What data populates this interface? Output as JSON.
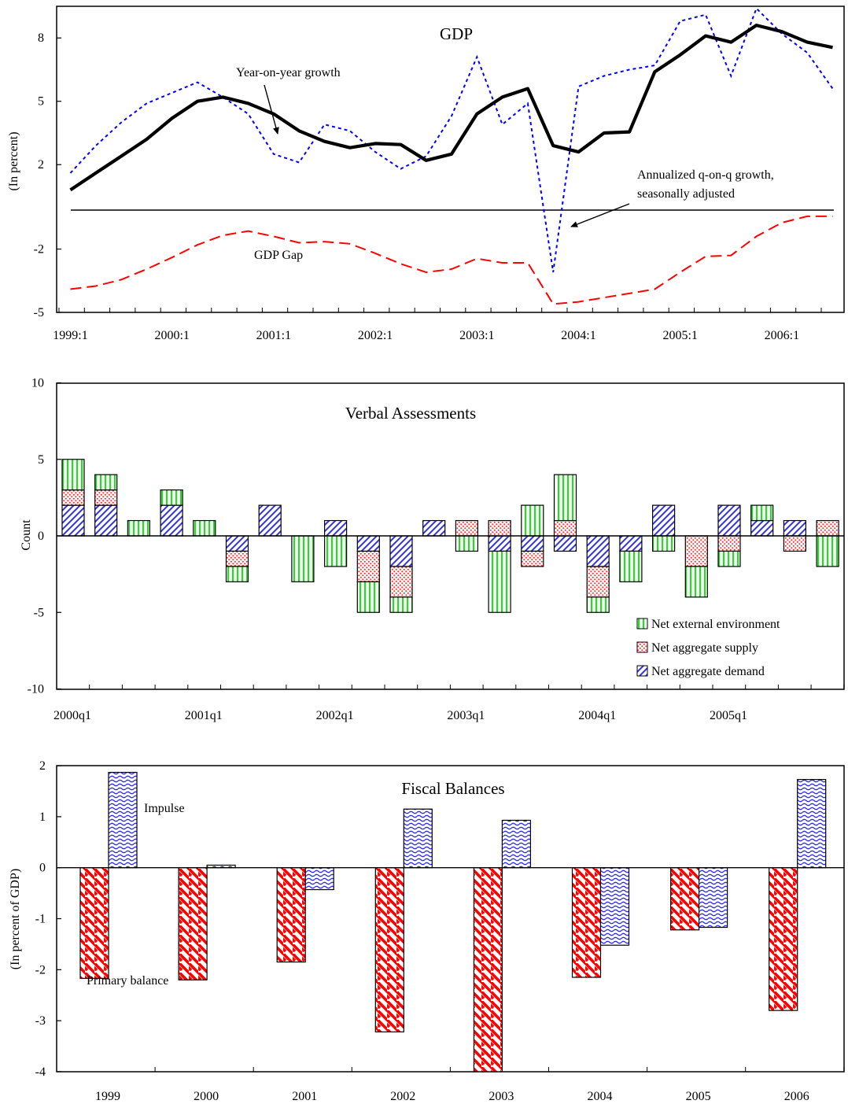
{
  "charts": {
    "gdp": {
      "title": "GDP",
      "ylabel": "(In percent)",
      "yticks": [
        "8",
        "5",
        "2",
        "-2",
        "-5"
      ],
      "xticks": [
        "1999:1",
        "2000:1",
        "2001:1",
        "2002:1",
        "2003:1",
        "2004:1",
        "2005:1",
        "2006:1"
      ],
      "annotations": {
        "yoy": "Year-on-year growth",
        "qoq_line1": "Annualized q-on-q growth,",
        "qoq_line2": "seasonally adjusted",
        "gap": "GDP Gap"
      }
    },
    "verbal": {
      "title": "Verbal Assessments",
      "ylabel": "Count",
      "yticks": [
        "10",
        "5",
        "0",
        "-5",
        "-10"
      ],
      "xticks": [
        "2000q1",
        "2001q1",
        "2002q1",
        "2003q1",
        "2004q1",
        "2005q1"
      ],
      "legend": [
        "Net external environment",
        "Net aggregate supply",
        "Net aggregate demand"
      ]
    },
    "fiscal": {
      "title": "Fiscal Balances",
      "ylabel": "(In percent of GDP)",
      "yticks": [
        "2",
        "1",
        "0",
        "-1",
        "-2",
        "-3",
        "-4"
      ],
      "xticks": [
        "1999",
        "2000",
        "2001",
        "2002",
        "2003",
        "2004",
        "2005",
        "2006"
      ],
      "annotations": {
        "impulse": "Impulse",
        "primary": "Primary balance"
      }
    }
  },
  "chart_data": [
    {
      "type": "line",
      "title": "GDP",
      "ylabel": "(In percent)",
      "ylim": [
        -5,
        9.5
      ],
      "x": [
        "1999:1",
        "1999:2",
        "1999:3",
        "1999:4",
        "2000:1",
        "2000:2",
        "2000:3",
        "2000:4",
        "2001:1",
        "2001:2",
        "2001:3",
        "2001:4",
        "2002:1",
        "2002:2",
        "2002:3",
        "2002:4",
        "2003:1",
        "2003:2",
        "2003:3",
        "2003:4",
        "2004:1",
        "2004:2",
        "2004:3",
        "2004:4",
        "2005:1",
        "2005:2",
        "2005:3",
        "2005:4",
        "2006:1",
        "2006:2",
        "2006:3"
      ],
      "series": [
        {
          "name": "Year-on-year growth",
          "color": "#000000",
          "values": [
            0.8,
            1.6,
            2.4,
            3.2,
            4.2,
            5.0,
            5.2,
            4.9,
            4.4,
            3.6,
            3.1,
            2.8,
            3.0,
            2.95,
            2.2,
            2.5,
            4.4,
            5.2,
            5.6,
            2.9,
            2.6,
            3.5,
            3.55,
            6.4,
            7.2,
            8.1,
            7.8,
            8.6,
            8.3,
            7.8,
            7.55
          ]
        },
        {
          "name": "Annualized q-on-q growth, seasonally adjusted",
          "color": "#0000ff",
          "values": [
            1.6,
            2.9,
            4.0,
            4.9,
            5.4,
            5.9,
            5.2,
            4.4,
            2.5,
            2.1,
            3.9,
            3.6,
            2.6,
            1.8,
            2.4,
            4.3,
            7.1,
            3.9,
            4.9,
            -3.1,
            5.7,
            6.2,
            6.5,
            6.7,
            8.8,
            9.1,
            6.2,
            9.4,
            8.2,
            7.3,
            5.6
          ]
        },
        {
          "name": "GDP Gap",
          "color": "#ff0000",
          "values": [
            -3.9,
            -3.75,
            -3.45,
            -2.95,
            -2.4,
            -1.8,
            -1.35,
            -1.15,
            -1.4,
            -1.7,
            -1.65,
            -1.75,
            -2.2,
            -2.7,
            -3.1,
            -2.95,
            -2.45,
            -2.65,
            -2.65,
            -4.6,
            -4.5,
            -4.3,
            -4.1,
            -3.9,
            -3.1,
            -2.35,
            -2.3,
            -1.4,
            -0.75,
            -0.45,
            -0.45
          ]
        }
      ]
    },
    {
      "type": "bar",
      "title": "Verbal Assessments",
      "ylabel": "Count",
      "ylim": [
        -10,
        10
      ],
      "categories": [
        "2000q1",
        "2000q2",
        "2000q3",
        "2000q4",
        "2001q1",
        "2001q2",
        "2001q3",
        "2001q4",
        "2002q1",
        "2002q2",
        "2002q3",
        "2002q4",
        "2003q1",
        "2003q2",
        "2003q3",
        "2003q4",
        "2004q1",
        "2004q2",
        "2004q3",
        "2004q4",
        "2005q1",
        "2005q2",
        "2005q3",
        "2005q4"
      ],
      "series": [
        {
          "name": "Net aggregate demand",
          "values": [
            2,
            2,
            0,
            2,
            0,
            -1,
            2,
            0,
            1,
            -1,
            -2,
            1,
            0,
            -1,
            -1,
            -1,
            -2,
            -1,
            2,
            0,
            2,
            1,
            1,
            0
          ]
        },
        {
          "name": "Net aggregate supply",
          "values": [
            1,
            1,
            0,
            0,
            0,
            -1,
            0,
            0,
            0,
            -2,
            -2,
            0,
            1,
            1,
            -1,
            1,
            -2,
            0,
            0,
            -2,
            -1,
            0,
            -1,
            1
          ]
        },
        {
          "name": "Net external environment",
          "values": [
            2,
            1,
            1,
            1,
            1,
            -1,
            0,
            -3,
            -2,
            -2,
            -1,
            0,
            -1,
            -4,
            2,
            3,
            -1,
            -2,
            -1,
            -2,
            -1,
            1,
            0,
            -2
          ]
        }
      ]
    },
    {
      "type": "bar",
      "title": "Fiscal Balances",
      "ylabel": "(In percent of GDP)",
      "ylim": [
        -4,
        2
      ],
      "categories": [
        "1999",
        "2000",
        "2001",
        "2002",
        "2003",
        "2004",
        "2005",
        "2006"
      ],
      "series": [
        {
          "name": "Primary balance",
          "values": [
            -2.17,
            -2.2,
            -1.85,
            -3.22,
            -4.0,
            -2.15,
            -1.22,
            -2.8
          ]
        },
        {
          "name": "Impulse",
          "values": [
            1.87,
            0.05,
            -0.43,
            1.15,
            0.93,
            -1.52,
            -1.17,
            1.73
          ]
        }
      ]
    }
  ]
}
